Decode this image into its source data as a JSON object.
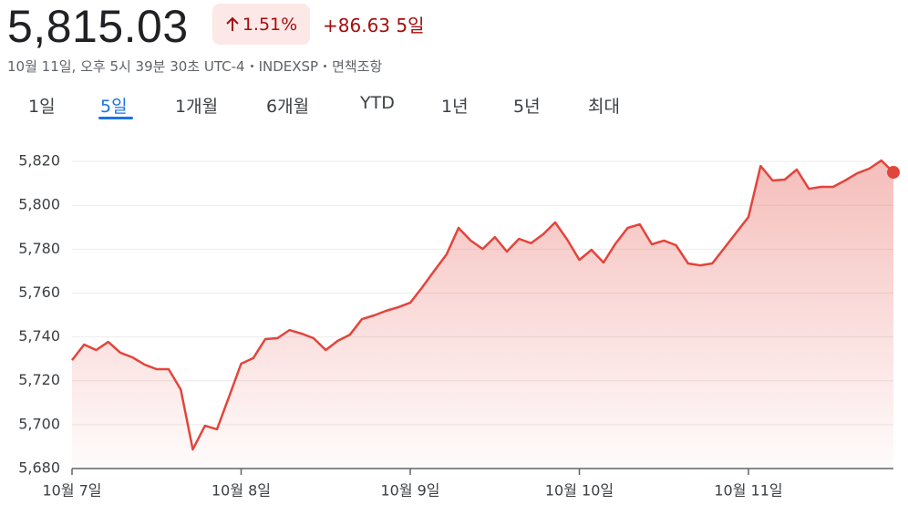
{
  "header": {
    "price": "5,815.03",
    "change_percent": "1.51%",
    "change": "+86.63",
    "period": "5일"
  },
  "subtitle": {
    "timestamp": "10월 11일, 오후 5시 39분 30초 UTC-4",
    "exchange": "INDEXSP",
    "disclaimer": "면책조항"
  },
  "tabs": [
    "1일",
    "5일",
    "1개월",
    "6개월",
    "YTD",
    "1년",
    "5년",
    "최대"
  ],
  "active_tab": 1,
  "chart_data": {
    "type": "area",
    "categories": [
      "10월 7일",
      null,
      null,
      null,
      null,
      null,
      null,
      null,
      null,
      null,
      null,
      null,
      null,
      null,
      "10월 8일",
      null,
      null,
      null,
      null,
      null,
      null,
      null,
      null,
      null,
      null,
      null,
      null,
      null,
      "10월 9일",
      null,
      null,
      null,
      null,
      null,
      null,
      null,
      null,
      null,
      null,
      null,
      null,
      null,
      "10월 10일",
      null,
      null,
      null,
      null,
      null,
      null,
      null,
      null,
      null,
      null,
      null,
      null,
      null,
      "10월 11일",
      null,
      null,
      null,
      null,
      null,
      null,
      null,
      null,
      null,
      null,
      null,
      null
    ],
    "values": [
      5729.4,
      5736.5,
      5734,
      5737.7,
      5732.8,
      5730.7,
      5727.4,
      5725.3,
      5725.3,
      5716,
      5688.7,
      5699.5,
      5697.9,
      5712.8,
      5727.8,
      5730.3,
      5739,
      5739.4,
      5743.1,
      5741.5,
      5739.4,
      5734,
      5738.2,
      5741,
      5748.1,
      5749.8,
      5751.9,
      5753.5,
      5755.6,
      5762.7,
      5770.2,
      5777.6,
      5789.7,
      5783.9,
      5780.1,
      5785.5,
      5778.9,
      5784.7,
      5782.7,
      5786.8,
      5792.2,
      5784.3,
      5775.1,
      5779.7,
      5773.9,
      5782.6,
      5789.7,
      5791.3,
      5782.2,
      5783.9,
      5781.8,
      5773.5,
      5772.6,
      5773.5,
      5780.5,
      5787.6,
      5794.7,
      5817.9,
      5811.3,
      5811.7,
      5816.3,
      5807.5,
      5808.4,
      5808.4,
      5811.3,
      5814.6,
      5816.7,
      5820.4,
      5815.03
    ],
    "color": "#e2453c",
    "ylim": [
      5680,
      5830
    ],
    "yticks": [
      {
        "value": 5680,
        "label": "5,680"
      },
      {
        "value": 5700,
        "label": "5,700"
      },
      {
        "value": 5720,
        "label": "5,720"
      },
      {
        "value": 5740,
        "label": "5,740"
      },
      {
        "value": 5760,
        "label": "5,760"
      },
      {
        "value": 5780,
        "label": "5,780"
      },
      {
        "value": 5800,
        "label": "5,800"
      },
      {
        "value": 5820,
        "label": "5,820"
      }
    ],
    "grid": true
  }
}
